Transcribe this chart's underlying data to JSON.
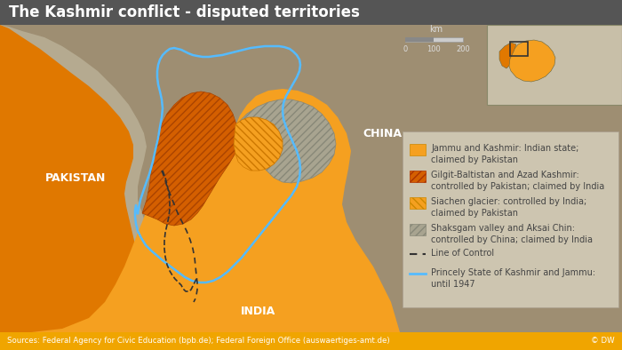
{
  "title": "The Kashmir conflict - disputed territories",
  "title_bg": "#555555",
  "title_color": "#ffffff",
  "title_fontsize": 12,
  "bg_color": "#9e8e72",
  "legend_bg": "#cdc5b0",
  "footer_bg": "#f0a500",
  "footer_text": "Sources: Federal Agency for Civic Education (bpb.de); Federal Foreign Office (auswaertiges-amt.de)",
  "footer_right": "© DW",
  "pak_country_color": "#e07800",
  "india_country_color": "#f5a020",
  "jk_color": "#f5a020",
  "gilgit_color": "#d45f00",
  "siachen_color": "#f5a020",
  "china_color": "#a8a490",
  "loc_color": "#333333",
  "princely_color": "#55bbff",
  "legend_text_color": "#444444",
  "china_label_color": "#ffffff",
  "pakistan_label_color": "#ffffff",
  "india_label_color": "#ffffff",
  "inset_bg": "#c8bfa8",
  "inset_border": "#333333"
}
